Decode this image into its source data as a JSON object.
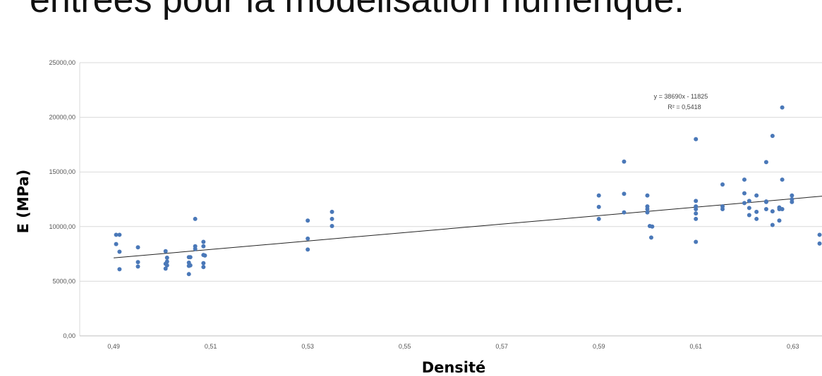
{
  "slide": {
    "title": "entrées pour la modélisation numérique."
  },
  "colors": {
    "points": "#4a78b8",
    "trendline": "#222222",
    "grid": "#d9d9d9",
    "frame": "#d9d9d9"
  },
  "chart_data": {
    "type": "scatter",
    "title": "",
    "xlabel": "Densité",
    "ylabel": "E (MPa)",
    "xlim": [
      0.483,
      0.636
    ],
    "ylim": [
      0,
      25000
    ],
    "grid": true,
    "x_ticks": [
      0.49,
      0.51,
      0.53,
      0.55,
      0.57,
      0.59,
      0.61,
      0.63
    ],
    "x_tick_labels": [
      "0,49",
      "0,51",
      "0,53",
      "0,55",
      "0,57",
      "0,59",
      "0,61",
      "0,63"
    ],
    "y_ticks": [
      0,
      5000,
      10000,
      15000,
      20000,
      25000
    ],
    "y_tick_labels": [
      "0,00",
      "5000,00",
      "10000,00",
      "15000,00",
      "20000,00",
      "25000,00"
    ],
    "trendline": {
      "equation": "y = 38690x - 11825",
      "r2_label": "R² = 0,5418",
      "slope": 38690,
      "intercept": -11825,
      "x_range": [
        0.49,
        0.636
      ]
    },
    "points": [
      [
        0.4905,
        9250
      ],
      [
        0.4912,
        9250
      ],
      [
        0.4905,
        8400
      ],
      [
        0.4912,
        7700
      ],
      [
        0.4912,
        6100
      ],
      [
        0.495,
        8100
      ],
      [
        0.495,
        6750
      ],
      [
        0.495,
        6350
      ],
      [
        0.5007,
        7750
      ],
      [
        0.501,
        7150
      ],
      [
        0.501,
        6800
      ],
      [
        0.5007,
        6600
      ],
      [
        0.5007,
        6150
      ],
      [
        0.501,
        6450
      ],
      [
        0.5055,
        7200
      ],
      [
        0.5058,
        7200
      ],
      [
        0.5055,
        6700
      ],
      [
        0.5055,
        6400
      ],
      [
        0.5058,
        6450
      ],
      [
        0.5055,
        5650
      ],
      [
        0.5068,
        10700
      ],
      [
        0.5068,
        8200
      ],
      [
        0.5068,
        7950
      ],
      [
        0.5085,
        8600
      ],
      [
        0.5085,
        8200
      ],
      [
        0.5085,
        7400
      ],
      [
        0.5088,
        7350
      ],
      [
        0.5085,
        6650
      ],
      [
        0.5085,
        6300
      ],
      [
        0.53,
        10550
      ],
      [
        0.53,
        8900
      ],
      [
        0.53,
        7900
      ],
      [
        0.535,
        11350
      ],
      [
        0.535,
        10700
      ],
      [
        0.535,
        10050
      ],
      [
        0.59,
        12850
      ],
      [
        0.59,
        11800
      ],
      [
        0.59,
        10700
      ],
      [
        0.5952,
        15950
      ],
      [
        0.5952,
        13000
      ],
      [
        0.5952,
        11300
      ],
      [
        0.6,
        12850
      ],
      [
        0.6,
        11850
      ],
      [
        0.6,
        11600
      ],
      [
        0.6,
        11300
      ],
      [
        0.6005,
        10050
      ],
      [
        0.601,
        10000
      ],
      [
        0.6008,
        9000
      ],
      [
        0.61,
        18000
      ],
      [
        0.61,
        12350
      ],
      [
        0.61,
        11850
      ],
      [
        0.61,
        11600
      ],
      [
        0.61,
        11200
      ],
      [
        0.61,
        10700
      ],
      [
        0.61,
        8600
      ],
      [
        0.6155,
        13850
      ],
      [
        0.6155,
        11850
      ],
      [
        0.6155,
        11600
      ],
      [
        0.62,
        14300
      ],
      [
        0.62,
        13050
      ],
      [
        0.62,
        12150
      ],
      [
        0.621,
        12350
      ],
      [
        0.621,
        11700
      ],
      [
        0.621,
        11050
      ],
      [
        0.6225,
        12850
      ],
      [
        0.6225,
        11350
      ],
      [
        0.6225,
        10700
      ],
      [
        0.6245,
        15900
      ],
      [
        0.6245,
        12300
      ],
      [
        0.6245,
        12250
      ],
      [
        0.6245,
        11600
      ],
      [
        0.6258,
        18300
      ],
      [
        0.6258,
        11400
      ],
      [
        0.6258,
        10150
      ],
      [
        0.6272,
        11750
      ],
      [
        0.6272,
        11600
      ],
      [
        0.6272,
        10550
      ],
      [
        0.6278,
        20900
      ],
      [
        0.6278,
        14300
      ],
      [
        0.6278,
        11600
      ],
      [
        0.6298,
        12850
      ],
      [
        0.6298,
        12500
      ],
      [
        0.6298,
        12250
      ],
      [
        0.6355,
        9250
      ],
      [
        0.6355,
        8450
      ]
    ]
  }
}
